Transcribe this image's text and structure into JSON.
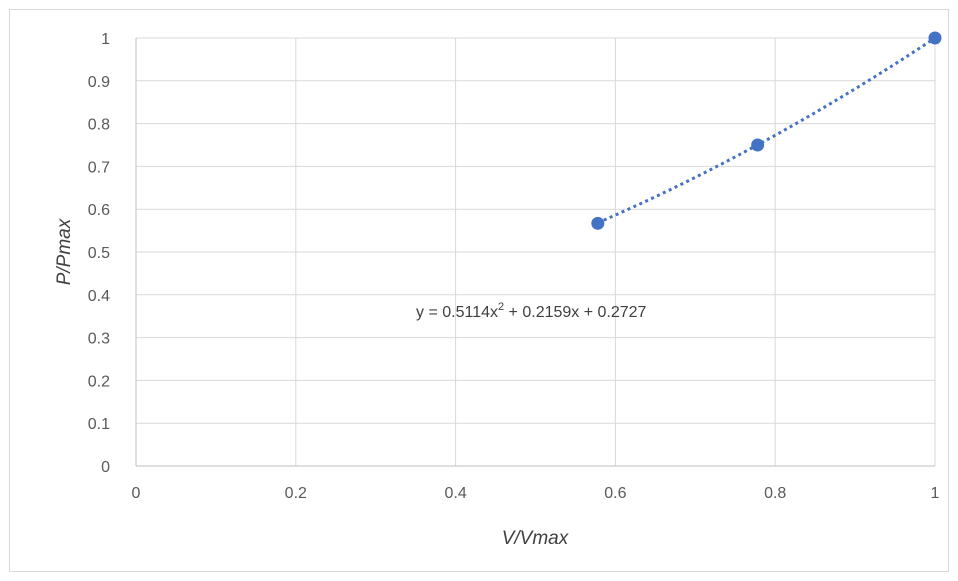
{
  "chart_data": {
    "type": "scatter",
    "xlabel": "V/Vmax",
    "ylabel": "P/Pmax",
    "xlim": [
      0,
      1
    ],
    "ylim": [
      0,
      1
    ],
    "x_ticks": [
      "0",
      "0.2",
      "0.4",
      "0.6",
      "0.8",
      "1"
    ],
    "y_ticks": [
      "0",
      "0.1",
      "0.2",
      "0.3",
      "0.4",
      "0.5",
      "0.6",
      "0.7",
      "0.8",
      "0.9",
      "1"
    ],
    "grid": true,
    "series": [
      {
        "x": [
          0.578,
          0.778,
          1.0
        ],
        "y": [
          0.567,
          0.75,
          1.0
        ],
        "color": "#4472c4"
      }
    ],
    "trendline": {
      "type": "polynomial",
      "coefficients": [
        0.5114,
        0.2159,
        0.2727
      ],
      "style": "dotted",
      "color": "#4472c4",
      "equation_prefix": "y = 0.5114x",
      "equation_sup": "2",
      "equation_suffix": " + 0.2159x + 0.2727"
    }
  }
}
